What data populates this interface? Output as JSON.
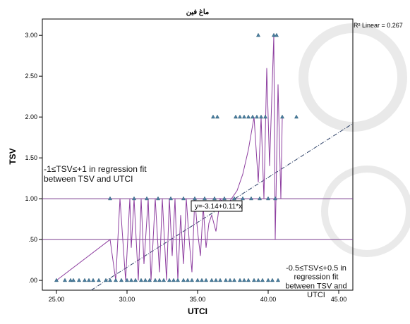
{
  "chart_data": {
    "type": "scatter",
    "title": "ماغ فين",
    "xlabel": "UTCI",
    "ylabel": "TSV",
    "xlim": [
      24,
      46
    ],
    "ylim": [
      -0.12,
      3.2
    ],
    "x_ticks": [
      25,
      30,
      35,
      40,
      45
    ],
    "x_tick_labels": [
      "25.00",
      "30.00",
      "35.00",
      "40.00",
      "45.00"
    ],
    "y_ticks": [
      0,
      0.5,
      1,
      1.5,
      2,
      2.5,
      3
    ],
    "y_tick_labels": [
      ".00",
      ".50",
      "1.00",
      "1.50",
      "2.00",
      "2.50",
      "3.00"
    ],
    "r2_label": "R² Linear = 0.267",
    "regression": {
      "label": "y=-3.14+0.11*x",
      "intercept": -3.14,
      "slope": 0.11
    },
    "reference_lines": [
      {
        "y": 1.0,
        "label": "-1≤TSV≤+1 in regression fit between TSV and UTCI"
      },
      {
        "y": 0.5,
        "label": "-0.5≤TSV≤+0.5 in regression fit between TSV and UTCI"
      }
    ],
    "points": {
      "x": [
        25.0,
        25.6,
        26.0,
        26.2,
        26.6,
        27.0,
        27.3,
        27.6,
        28.0,
        28.5,
        28.8,
        29.2,
        29.6,
        30.0,
        30.3,
        30.6,
        31.0,
        31.3,
        31.6,
        32.0,
        32.3,
        32.6,
        33.0,
        33.3,
        33.6,
        34.0,
        34.3,
        34.6,
        35.0,
        35.3,
        35.6,
        36.0,
        36.3,
        36.6,
        37.0,
        37.3,
        37.6,
        38.0,
        38.3,
        38.6,
        39.0,
        39.3,
        39.6,
        40.0,
        40.3,
        40.7,
        28.8,
        30.5,
        31.4,
        32.2,
        33.1,
        34.0,
        34.8,
        35.5,
        36.2,
        36.9,
        37.6,
        38.2,
        38.8,
        39.4,
        40.0,
        40.5,
        36.1,
        36.4,
        37.7,
        38.0,
        38.3,
        38.6,
        38.9,
        39.2,
        39.5,
        39.8,
        41.0,
        42.0,
        39.3,
        40.4,
        40.6
      ],
      "y": [
        0,
        0,
        0,
        0,
        0,
        0,
        0,
        0,
        0,
        0,
        0,
        0,
        0,
        0,
        0,
        0,
        0,
        0,
        0,
        0,
        0,
        0,
        0,
        0,
        0,
        0,
        0,
        0,
        0,
        0,
        0,
        0,
        0,
        0,
        0,
        0,
        0,
        0,
        0,
        0,
        0,
        0,
        0,
        0,
        0,
        0,
        1,
        1,
        1,
        1,
        1,
        1,
        1,
        1,
        1,
        1,
        1,
        1,
        1,
        1,
        1,
        1,
        2,
        2,
        2,
        2,
        2,
        2,
        2,
        2,
        2,
        2,
        2,
        2,
        3,
        3,
        3
      ]
    },
    "fit_line": {
      "x": [
        25.0,
        28.8,
        29.2,
        29.5,
        29.9,
        30.2,
        30.3,
        30.5,
        30.8,
        31.0,
        31.2,
        31.5,
        31.7,
        32.0,
        32.3,
        32.5,
        32.8,
        33.0,
        33.2,
        33.4,
        33.6,
        33.8,
        34.0,
        34.2,
        34.4,
        34.6,
        34.8,
        35.0,
        35.2,
        35.4,
        35.6,
        35.8,
        36.0,
        36.3,
        36.6,
        37.0,
        37.4,
        37.8,
        38.2,
        38.6,
        39.0,
        39.3,
        39.5,
        39.7,
        39.9,
        40.1,
        40.4,
        40.5,
        40.7,
        40.9,
        41.0
      ],
      "y": [
        0,
        0.5,
        0,
        1.0,
        0,
        1.0,
        0.4,
        1.0,
        0,
        1.0,
        0.2,
        1.0,
        0,
        1.0,
        0.1,
        1.0,
        0,
        1.0,
        0.3,
        1.0,
        0,
        0.8,
        0.2,
        1.0,
        0.5,
        0.1,
        1.0,
        0.6,
        0.3,
        0.9,
        0.4,
        0.7,
        0.8,
        0.6,
        1.0,
        0.9,
        1.0,
        1.1,
        1.3,
        1.6,
        2.0,
        1.2,
        2.0,
        1.0,
        2.6,
        1.4,
        3.0,
        0.5,
        2.4,
        1.0,
        2.0
      ]
    }
  }
}
